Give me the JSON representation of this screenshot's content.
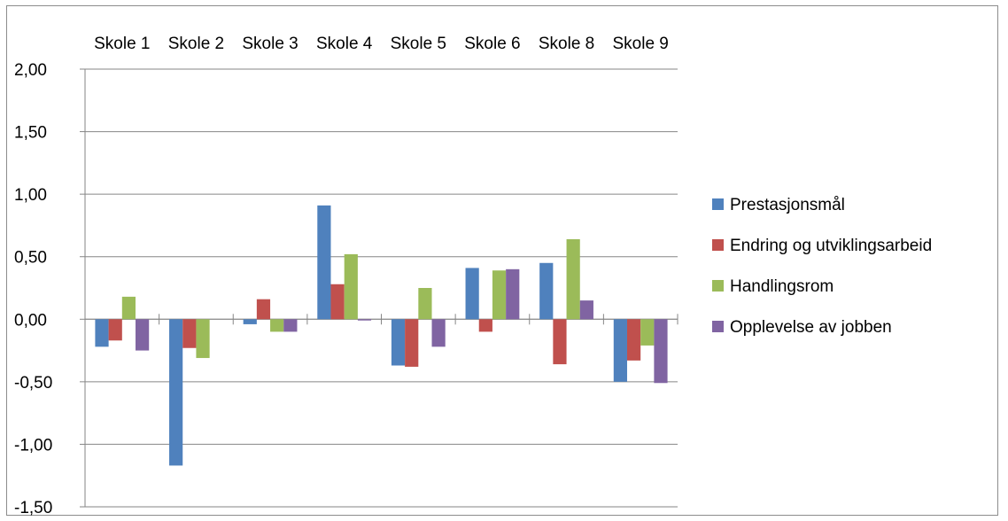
{
  "chart_data": {
    "type": "bar",
    "categories": [
      "Skole 1",
      "Skole 2",
      "Skole 3",
      "Skole 4",
      "Skole 5",
      "Skole 6",
      "Skole 8",
      "Skole 9"
    ],
    "series": [
      {
        "name": "Prestasjonsmål",
        "color": "#4f81bd",
        "values": [
          -0.22,
          -1.17,
          -0.04,
          0.91,
          -0.37,
          0.41,
          0.45,
          -0.5
        ]
      },
      {
        "name": "Endring og utviklingsarbeid",
        "color": "#c0504d",
        "values": [
          -0.17,
          -0.23,
          0.16,
          0.28,
          -0.38,
          -0.1,
          -0.36,
          -0.33
        ]
      },
      {
        "name": "Handlingsrom",
        "color": "#9bbb59",
        "values": [
          0.18,
          -0.31,
          -0.1,
          0.52,
          0.25,
          0.39,
          0.64,
          -0.21
        ]
      },
      {
        "name": "Opplevelse av jobben",
        "color": "#8064a2",
        "values": [
          -0.25,
          0.0,
          -0.1,
          -0.01,
          -0.22,
          0.4,
          0.15,
          -0.51
        ]
      }
    ],
    "ylim": [
      -1.5,
      2.0
    ],
    "yticks": [
      "2,00",
      "1,50",
      "1,00",
      "0,50",
      "0,00",
      "-0,50",
      "-1,00",
      "-1,50"
    ],
    "ytick_values": [
      2.0,
      1.5,
      1.0,
      0.5,
      0.0,
      -0.5,
      -1.0,
      -1.5
    ],
    "grid": true,
    "legend_position": "right",
    "category_label_position": "top",
    "title": "",
    "xlabel": "",
    "ylabel": ""
  }
}
